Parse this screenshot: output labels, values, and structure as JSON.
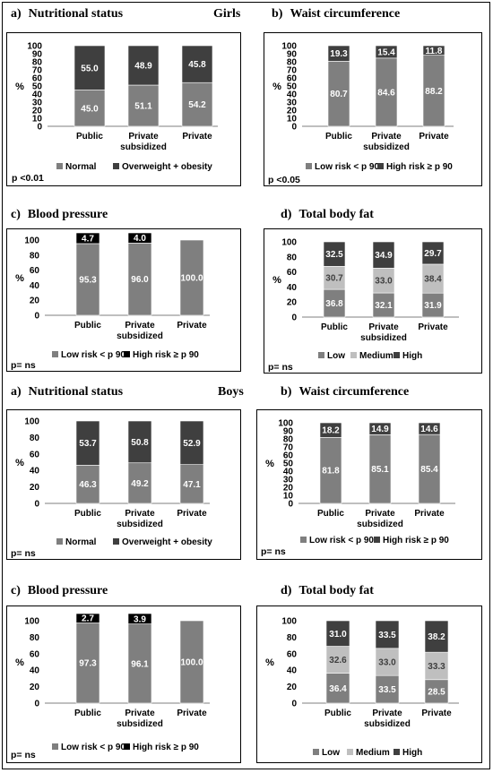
{
  "groups": {
    "girls": "Girls",
    "boys": "Boys"
  },
  "colors": {
    "normal": "#7f7f7f",
    "overweight": "#3f3f3f",
    "low": "#7f7f7f",
    "medium": "#bfbfbf",
    "high": "#3f3f3f",
    "bp_high": "#000000"
  },
  "chart_data": [
    {
      "id": "girls_a",
      "letter": "a)",
      "title": "Nutritional status",
      "type": "bar",
      "categories": [
        "Public",
        "Private\nsubsidized",
        "Private"
      ],
      "ylabel": "%",
      "ylim": [
        0,
        100
      ],
      "yticks": [
        0,
        10,
        20,
        30,
        40,
        50,
        60,
        70,
        80,
        90,
        100
      ],
      "series": [
        {
          "name": "Normal",
          "values": [
            45.0,
            51.1,
            54.2
          ]
        },
        {
          "name": "Overweight + obesity",
          "values": [
            55.0,
            48.9,
            45.8
          ]
        }
      ],
      "labels": [
        [
          "45.0",
          "51.1",
          "54.2"
        ],
        [
          "55.0",
          "48.9",
          "45.8"
        ]
      ],
      "pvalue": "p <0.01"
    },
    {
      "id": "girls_b",
      "letter": "b)",
      "title": "Waist circumference",
      "type": "bar",
      "categories": [
        "Public",
        "Private\nsubsidized",
        "Private"
      ],
      "ylabel": "%",
      "ylim": [
        0,
        100
      ],
      "yticks": [
        0,
        10,
        20,
        30,
        40,
        50,
        60,
        70,
        80,
        90,
        100
      ],
      "series": [
        {
          "name": "Low risk < p 90",
          "values": [
            80.7,
            84.6,
            88.2
          ]
        },
        {
          "name": "High risk ≥ p 90",
          "values": [
            19.3,
            15.4,
            11.8
          ]
        }
      ],
      "labels": [
        [
          "80.7",
          "84.6",
          "88.2"
        ],
        [
          "19.3",
          "15.4",
          "11.8"
        ]
      ],
      "pvalue": "p <0.05"
    },
    {
      "id": "girls_c",
      "letter": "c)",
      "title": "Blood pressure",
      "type": "bar",
      "categories": [
        "Public",
        "Private\nsubsidized",
        "Private"
      ],
      "ylabel": "%",
      "ylim": [
        0,
        100
      ],
      "yticks": [
        0,
        20,
        40,
        60,
        80,
        100
      ],
      "series": [
        {
          "name": "Low risk < p 90",
          "values": [
            95.3,
            96.0,
            100.0
          ]
        },
        {
          "name": "High risk ≥ p 90",
          "values": [
            4.7,
            4.0,
            0
          ]
        }
      ],
      "labels": [
        [
          "95.3",
          "96.0",
          "100.0"
        ],
        [
          "4.7",
          "4.0",
          ""
        ]
      ],
      "pvalue": "p= ns"
    },
    {
      "id": "girls_d",
      "letter": "d)",
      "title": "Total body fat",
      "type": "bar",
      "categories": [
        "Public",
        "Private\nsubsidized",
        "Private"
      ],
      "ylabel": "%",
      "ylim": [
        0,
        100
      ],
      "yticks": [
        0,
        20,
        40,
        60,
        80,
        100
      ],
      "series": [
        {
          "name": "Low",
          "values": [
            36.8,
            32.1,
            31.9
          ]
        },
        {
          "name": "Medium",
          "values": [
            30.7,
            33.0,
            38.4
          ]
        },
        {
          "name": "High",
          "values": [
            32.5,
            34.9,
            29.7
          ]
        }
      ],
      "labels": [
        [
          "36.8",
          "32.1",
          "31.9"
        ],
        [
          "30.7",
          "33.0",
          "38.4"
        ],
        [
          "32.5",
          "34.9",
          "29.7"
        ]
      ],
      "pvalue": "p= ns"
    },
    {
      "id": "boys_a",
      "letter": "a)",
      "title": "Nutritional status",
      "type": "bar",
      "categories": [
        "Public",
        "Private\nsubsidized",
        "Private"
      ],
      "ylabel": "%",
      "ylim": [
        0,
        100
      ],
      "yticks": [
        0,
        20,
        40,
        60,
        80,
        100
      ],
      "series": [
        {
          "name": "Normal",
          "values": [
            46.3,
            49.2,
            47.1
          ]
        },
        {
          "name": "Overweight + obesity",
          "values": [
            53.7,
            50.8,
            52.9
          ]
        }
      ],
      "labels": [
        [
          "46.3",
          "49.2",
          "47.1"
        ],
        [
          "53.7",
          "50.8",
          "52.9"
        ]
      ],
      "pvalue": "p= ns"
    },
    {
      "id": "boys_b",
      "letter": "b)",
      "title": "Waist circumference",
      "type": "bar",
      "categories": [
        "Public",
        "Private\nsubsidized",
        "Private"
      ],
      "ylabel": "%",
      "ylim": [
        0,
        100
      ],
      "yticks": [
        0,
        10,
        20,
        30,
        40,
        50,
        60,
        70,
        80,
        90,
        100
      ],
      "series": [
        {
          "name": "Low risk < p 90",
          "values": [
            81.8,
            85.1,
            85.4
          ]
        },
        {
          "name": "High risk ≥ p 90",
          "values": [
            18.2,
            14.9,
            14.6
          ]
        }
      ],
      "labels": [
        [
          "81.8",
          "85.1",
          "85.4"
        ],
        [
          "18.2",
          "14.9",
          "14.6"
        ]
      ],
      "pvalue": "p= ns"
    },
    {
      "id": "boys_c",
      "letter": "c)",
      "title": "Blood pressure",
      "type": "bar",
      "categories": [
        "Public",
        "Private\nsubsidized",
        "Private"
      ],
      "ylabel": "%",
      "ylim": [
        0,
        100
      ],
      "yticks": [
        0,
        20,
        40,
        60,
        80,
        100
      ],
      "series": [
        {
          "name": "Low risk < p 90",
          "values": [
            97.3,
            96.1,
            100.0
          ]
        },
        {
          "name": "High risk ≥ p 90",
          "values": [
            2.7,
            3.9,
            0
          ]
        }
      ],
      "labels": [
        [
          "97.3",
          "96.1",
          "100.0"
        ],
        [
          "2.7",
          "3.9",
          ""
        ]
      ],
      "pvalue": "p= ns"
    },
    {
      "id": "boys_d",
      "letter": "d)",
      "title": "Total body fat",
      "type": "bar",
      "categories": [
        "Public",
        "Private\nsubsidized",
        "Private"
      ],
      "ylabel": "%",
      "ylim": [
        0,
        100
      ],
      "yticks": [
        0,
        20,
        40,
        60,
        80,
        100
      ],
      "series": [
        {
          "name": "Low",
          "values": [
            36.4,
            33.5,
            28.5
          ]
        },
        {
          "name": "Medium",
          "values": [
            32.6,
            33.0,
            33.3
          ]
        },
        {
          "name": "High",
          "values": [
            31.0,
            33.5,
            38.2
          ]
        }
      ],
      "labels": [
        [
          "36.4",
          "33.5",
          "28.5"
        ],
        [
          "32.6",
          "33.0",
          "33.3"
        ],
        [
          "31.0",
          "33.5",
          "38.2"
        ]
      ],
      "pvalue": "p= ns"
    }
  ]
}
